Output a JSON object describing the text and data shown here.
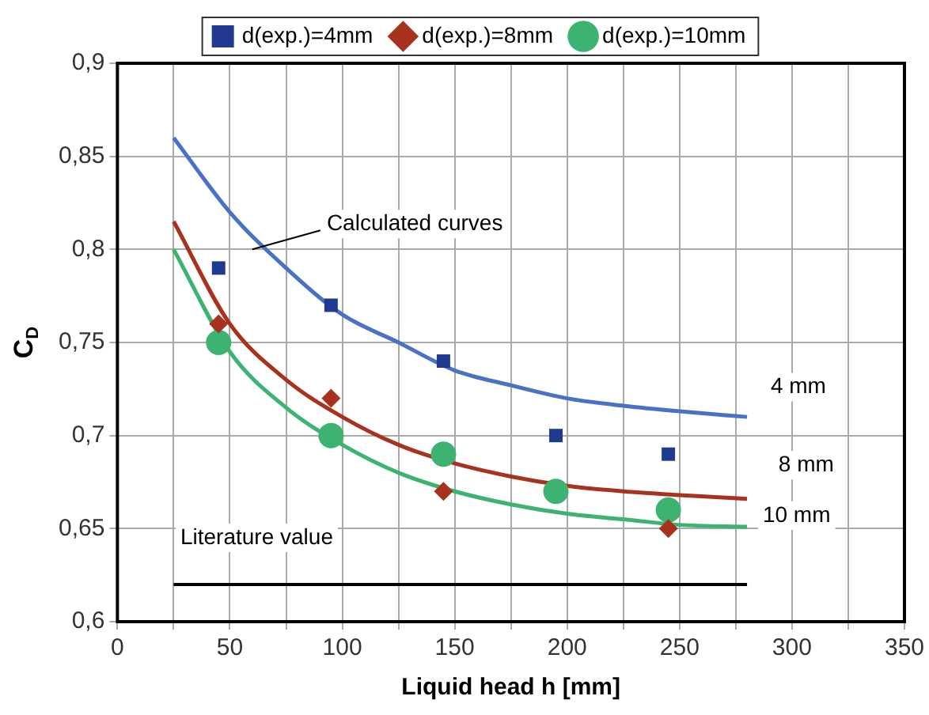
{
  "chart_data": {
    "type": "scatter",
    "xlabel": "Liquid head h [mm]",
    "ylabel": "C$_{D}$",
    "xlim": [
      0,
      350
    ],
    "xticks": [
      0,
      {
        "value": 25,
        "label": null
      },
      50,
      {
        "value": 75,
        "label": null
      },
      100,
      {
        "value": 125,
        "label": null
      },
      150,
      {
        "value": 175,
        "label": null
      },
      200,
      {
        "value": 225,
        "label": null
      },
      250,
      {
        "value": 275,
        "label": null
      },
      300,
      {
        "value": 325,
        "label": null
      },
      350
    ],
    "ylim": [
      0.6,
      0.9
    ],
    "yticks": [
      {
        "value": 0.6,
        "label": "0,6"
      },
      {
        "value": 0.65,
        "label": "0,65"
      },
      {
        "value": 0.7,
        "label": "0,7"
      },
      {
        "value": 0.75,
        "label": "0,75"
      },
      {
        "value": 0.8,
        "label": "0,8"
      },
      {
        "value": 0.85,
        "label": "0,85"
      },
      {
        "value": 0.9,
        "label": "0,9"
      }
    ],
    "grid": true,
    "legend": "top",
    "series": [
      {
        "type": "line",
        "color": "#4a72c4",
        "x": [
          25,
          50,
          75,
          100,
          125,
          150,
          175,
          200,
          225,
          250,
          280
        ],
        "values": [
          0.86,
          0.82,
          0.79,
          0.765,
          0.75,
          0.735,
          0.727,
          0.72,
          0.716,
          0.713,
          0.71
        ]
      },
      {
        "type": "line",
        "color": "#a8321e",
        "x": [
          25,
          50,
          75,
          100,
          125,
          150,
          175,
          200,
          225,
          250,
          280
        ],
        "values": [
          0.815,
          0.76,
          0.73,
          0.71,
          0.695,
          0.685,
          0.678,
          0.673,
          0.67,
          0.668,
          0.666
        ]
      },
      {
        "type": "line",
        "color": "#3cb371",
        "x": [
          25,
          50,
          75,
          100,
          125,
          150,
          175,
          200,
          225,
          250,
          280
        ],
        "values": [
          0.8,
          0.745,
          0.715,
          0.695,
          0.68,
          0.67,
          0.663,
          0.658,
          0.655,
          0.652,
          0.651
        ]
      },
      {
        "type": "line",
        "color": "#000000",
        "x": [
          25,
          280
        ],
        "values": [
          0.62,
          0.62
        ]
      },
      {
        "marker": "square",
        "name": "d(exp.)=4mm",
        "color": "#1f3a8f",
        "x": [
          45,
          95,
          145,
          195,
          245
        ],
        "values": [
          0.79,
          0.77,
          0.74,
          0.7,
          0.69
        ]
      },
      {
        "marker": "diamond",
        "name": "d(exp.)=8mm",
        "color": "#a8321e",
        "x": [
          45,
          95,
          145,
          195,
          245
        ],
        "values": [
          0.76,
          0.72,
          0.67,
          null,
          0.65
        ]
      },
      {
        "marker": "circle",
        "name": "d(exp.)=10mm",
        "color": "#3cb371",
        "x": [
          45,
          95,
          145,
          195,
          245
        ],
        "values": [
          0.75,
          0.7,
          0.69,
          0.67,
          0.66
        ]
      }
    ],
    "annotations": [
      {
        "text": "Calculated curves",
        "x": 60,
        "y": 0.8
      },
      "4 mm",
      "8 mm",
      "10 mm",
      "Literature value"
    ]
  }
}
